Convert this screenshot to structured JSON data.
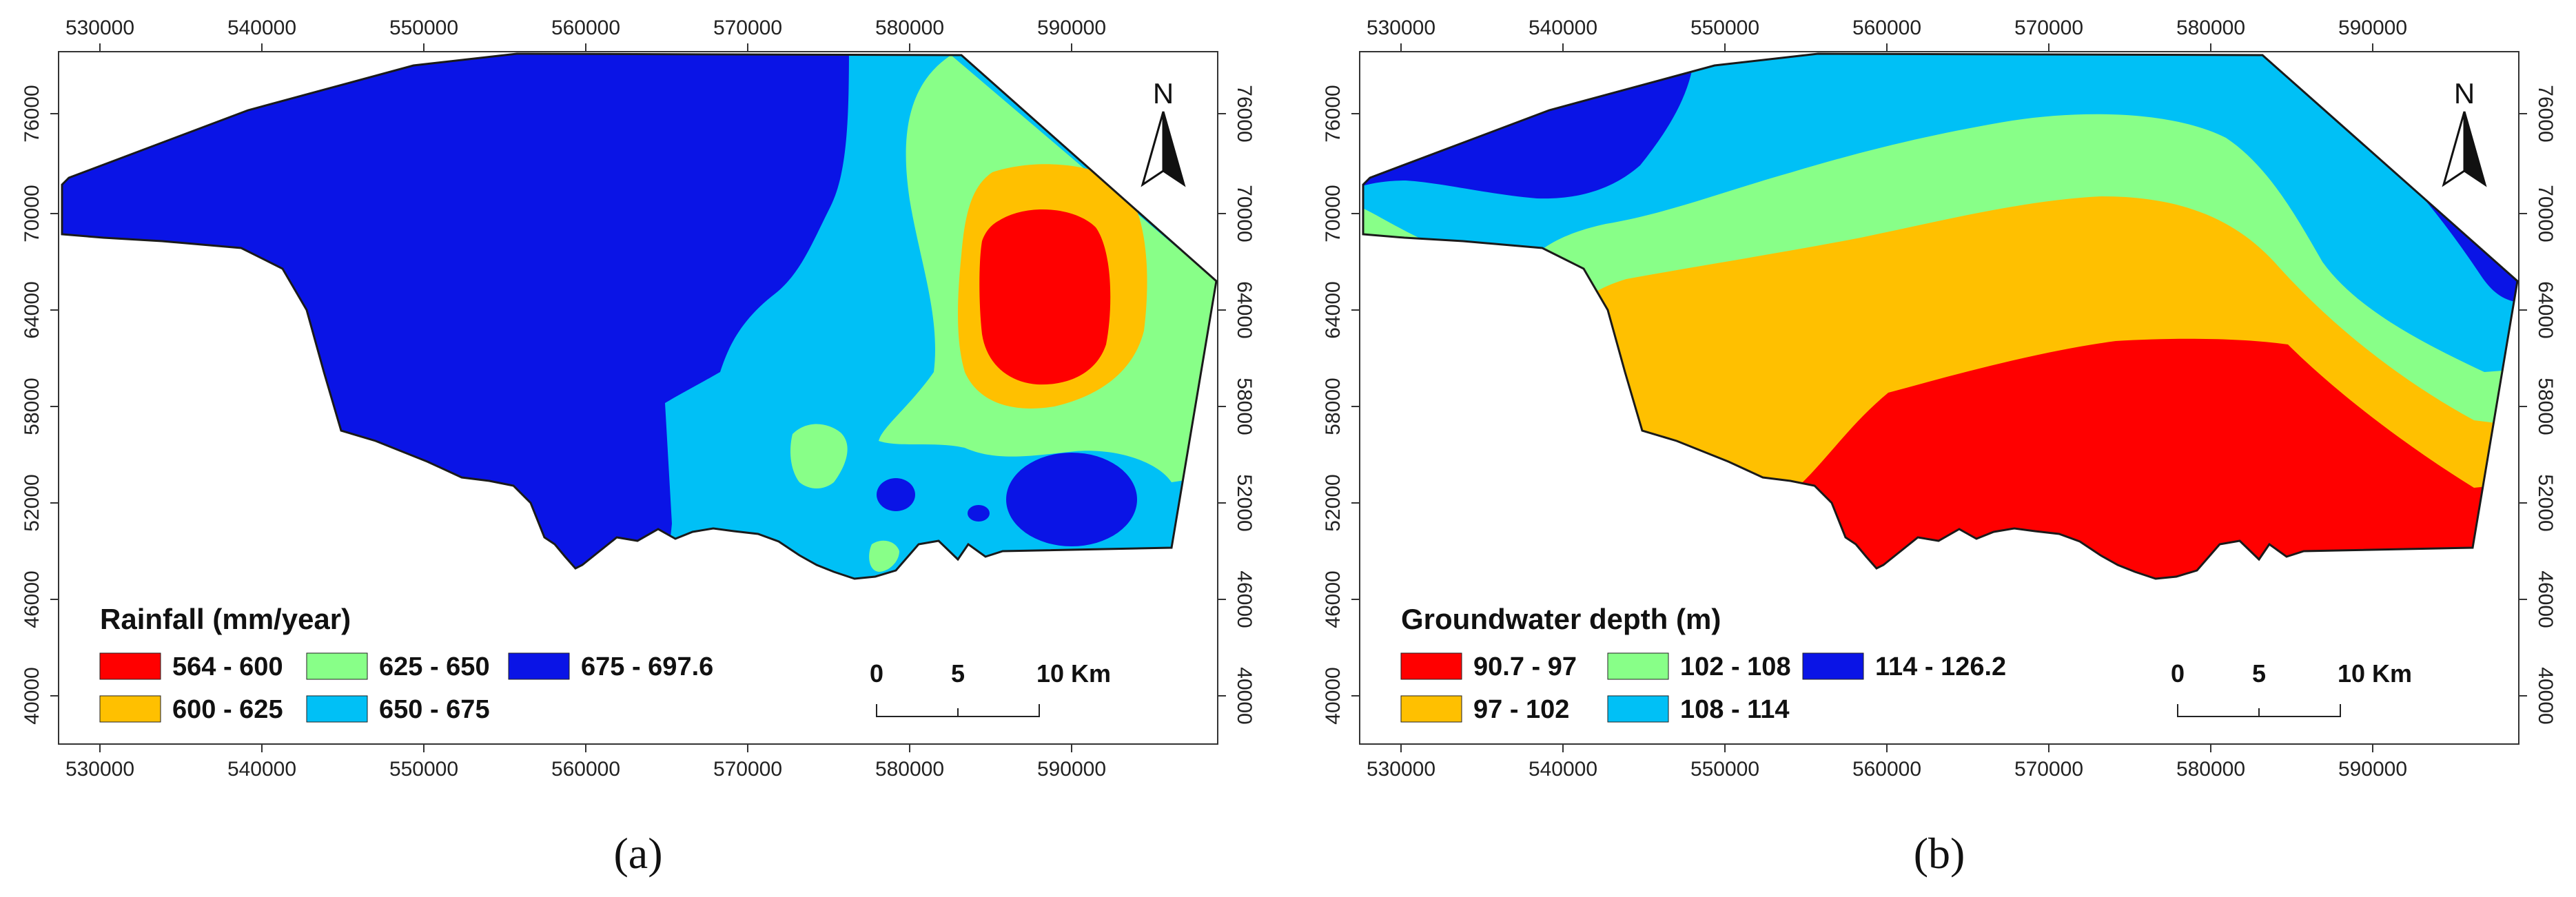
{
  "x_ticks": [
    "530000",
    "540000",
    "550000",
    "560000",
    "570000",
    "580000",
    "590000"
  ],
  "y_ticks": [
    "76000",
    "70000",
    "64000",
    "58000",
    "52000",
    "46000",
    "40000"
  ],
  "colors": {
    "red": "#ff0000",
    "orange": "#ffc000",
    "green": "#88ff88",
    "cyan": "#00c0f6",
    "blue": "#0a14e6",
    "outline": "#1a1a1a"
  },
  "panels": [
    {
      "id": "a",
      "label": "(a)",
      "legend_title": "Rainfall (mm/year)",
      "legend_items": [
        {
          "label": "564 - 600",
          "color": "#ff0000"
        },
        {
          "label": "600 - 625",
          "color": "#ffc000"
        },
        {
          "label": "625 - 650",
          "color": "#88ff88"
        },
        {
          "label": "650 - 675",
          "color": "#00c0f6"
        },
        {
          "label": "675 - 697.6",
          "color": "#0a14e6"
        }
      ],
      "scale_labels": [
        "0",
        "5",
        "10 Km"
      ],
      "north": "N"
    },
    {
      "id": "b",
      "label": "(b)",
      "legend_title": "Groundwater depth (m)",
      "legend_items": [
        {
          "label": "90.7 - 97",
          "color": "#ff0000"
        },
        {
          "label": "97 - 102",
          "color": "#ffc000"
        },
        {
          "label": "102 - 108",
          "color": "#88ff88"
        },
        {
          "label": "108 - 114",
          "color": "#00c0f6"
        },
        {
          "label": "114 - 126.2",
          "color": "#0a14e6"
        }
      ],
      "scale_labels": [
        "0",
        "5",
        "10 Km"
      ],
      "north": "N"
    }
  ]
}
